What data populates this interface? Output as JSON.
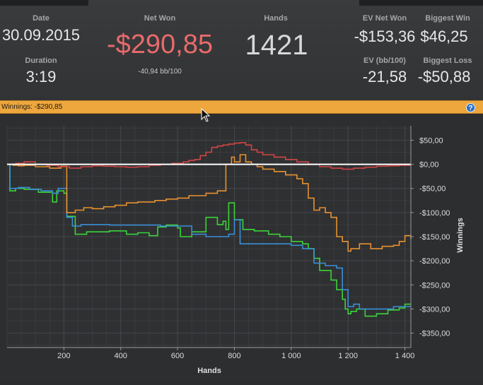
{
  "stats": {
    "date_label": "Date",
    "date_value": "30.09.2015",
    "duration_label": "Duration",
    "duration_value": "3:19",
    "net_won_label": "Net Won",
    "net_won_value": "-$290,85",
    "net_won_bb": "-40,94 bb/100",
    "hands_label": "Hands",
    "hands_value": "1421",
    "ev_net_won_label": "EV Net Won",
    "ev_net_won_value": "-$153,36",
    "biggest_win_label": "Biggest Win",
    "biggest_win_value": "$46,25",
    "ev_bb_label": "EV (bb/100)",
    "ev_bb_value": "-21,58",
    "biggest_loss_label": "Biggest Loss",
    "biggest_loss_value": "-$50,88"
  },
  "banner": {
    "text": "Winnings:  -$290,85",
    "help_icon": "?"
  },
  "colors": {
    "net_won": "#e86b6b",
    "banner": "#eea73d",
    "green": "#3ad43a",
    "blue": "#3a8fd8",
    "orange": "#e8912e",
    "red": "#d04545"
  },
  "chart_data": {
    "type": "line",
    "xlabel": "Hands",
    "ylabel": "Winnings",
    "xlim": [
      0,
      1421
    ],
    "ylim": [
      -380,
      80
    ],
    "x_ticks": [
      200,
      400,
      600,
      800,
      1000,
      1200,
      1400
    ],
    "x_tick_labels": [
      "200",
      "400",
      "600",
      "800",
      "1 000",
      "1 200",
      "1 400"
    ],
    "y_ticks": [
      50,
      0,
      -50,
      -100,
      -150,
      -200,
      -250,
      -300,
      -350
    ],
    "y_tick_labels": [
      "$50,00",
      "$0,00",
      "-$50,00",
      "-$100,00",
      "-$150,00",
      "-$200,00",
      "-$250,00",
      "-$300,00",
      "-$350,00"
    ],
    "grid": true,
    "series": [
      {
        "color": "#3ad43a",
        "x": [
          0,
          10,
          30,
          60,
          110,
          160,
          175,
          200,
          210,
          240,
          280,
          360,
          420,
          460,
          500,
          530,
          560,
          600,
          610,
          650,
          700,
          740,
          760,
          770,
          780,
          800,
          830,
          870,
          920,
          960,
          1000,
          1040,
          1060,
          1080,
          1100,
          1140,
          1160,
          1180,
          1190,
          1200,
          1210,
          1230,
          1260,
          1300,
          1340,
          1380,
          1400,
          1421
        ],
        "y": [
          0,
          -55,
          -50,
          -52,
          -58,
          -78,
          -55,
          -60,
          -108,
          -145,
          -140,
          -138,
          -145,
          -142,
          -148,
          -130,
          -126,
          -132,
          -150,
          -140,
          -110,
          -125,
          -118,
          -135,
          -80,
          -115,
          -135,
          -138,
          -145,
          -150,
          -160,
          -165,
          -175,
          -195,
          -220,
          -240,
          -260,
          -280,
          -300,
          -310,
          -305,
          -300,
          -315,
          -310,
          -302,
          -298,
          -290,
          -290
        ]
      },
      {
        "color": "#3a8fd8",
        "x": [
          0,
          10,
          40,
          80,
          120,
          160,
          180,
          210,
          230,
          260,
          300,
          360,
          420,
          480,
          540,
          600,
          650,
          700,
          760,
          780,
          800,
          820,
          860,
          920,
          960,
          1000,
          1040,
          1080,
          1100,
          1120,
          1160,
          1180,
          1200,
          1220,
          1240,
          1280,
          1320,
          1360,
          1400,
          1421
        ],
        "y": [
          0,
          -50,
          -48,
          -52,
          -55,
          -60,
          -50,
          -110,
          -128,
          -125,
          -125,
          -126,
          -126,
          -126,
          -128,
          -128,
          -145,
          -150,
          -150,
          -145,
          -115,
          -165,
          -165,
          -165,
          -165,
          -168,
          -175,
          -205,
          -205,
          -210,
          -215,
          -260,
          -295,
          -290,
          -300,
          -300,
          -300,
          -295,
          -295,
          -295
        ]
      },
      {
        "color": "#e8912e",
        "x": [
          0,
          20,
          40,
          60,
          100,
          150,
          190,
          210,
          240,
          270,
          300,
          340,
          380,
          420,
          460,
          520,
          560,
          600,
          640,
          700,
          740,
          770,
          790,
          800,
          820,
          840,
          860,
          880,
          900,
          940,
          980,
          1020,
          1040,
          1060,
          1080,
          1100,
          1120,
          1140,
          1160,
          1180,
          1200,
          1210,
          1240,
          1280,
          1320,
          1360,
          1380,
          1400,
          1421
        ],
        "y": [
          0,
          -2,
          -3,
          -2,
          -5,
          -8,
          -4,
          -100,
          -95,
          -90,
          -92,
          -88,
          -85,
          -80,
          -78,
          -75,
          -72,
          -70,
          -65,
          -60,
          -55,
          0,
          15,
          5,
          20,
          5,
          0,
          -5,
          -10,
          -15,
          -22,
          -30,
          -40,
          -70,
          -95,
          -90,
          -100,
          -110,
          -150,
          -160,
          -180,
          -175,
          -165,
          -175,
          -170,
          -168,
          -160,
          -148,
          -155
        ]
      },
      {
        "color": "#d04545",
        "x": [
          0,
          30,
          60,
          100,
          140,
          180,
          220,
          260,
          300,
          340,
          380,
          420,
          460,
          500,
          540,
          580,
          620,
          640,
          660,
          680,
          700,
          720,
          740,
          760,
          780,
          800,
          820,
          840,
          860,
          880,
          900,
          940,
          980,
          1020,
          1060,
          1100,
          1140,
          1180,
          1220,
          1260,
          1300,
          1340,
          1380,
          1421
        ],
        "y": [
          0,
          2,
          5,
          0,
          -2,
          -5,
          -8,
          -5,
          -3,
          -4,
          -5,
          -6,
          -5,
          -2,
          0,
          2,
          5,
          8,
          10,
          18,
          25,
          35,
          38,
          40,
          42,
          44,
          45,
          40,
          30,
          25,
          20,
          15,
          10,
          5,
          0,
          -5,
          -8,
          -10,
          -8,
          -6,
          -4,
          -3,
          -2,
          0
        ]
      }
    ]
  }
}
